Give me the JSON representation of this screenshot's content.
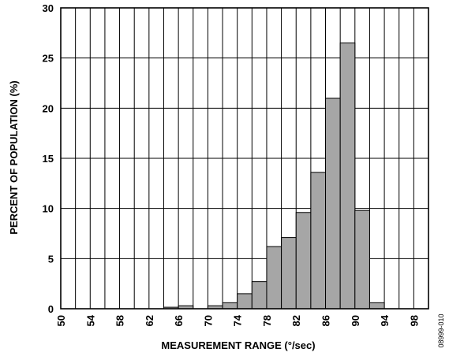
{
  "chart_data": {
    "type": "bar",
    "title": "",
    "xlabel": "MEASUREMENT RANGE (°/sec)",
    "ylabel": "PERCENT OF POPULATION (%)",
    "xlim": [
      50,
      100
    ],
    "ylim": [
      0,
      30
    ],
    "bin_width": 2,
    "x_ticks": [
      "50",
      "54",
      "58",
      "62",
      "66",
      "70",
      "74",
      "78",
      "82",
      "86",
      "90",
      "94",
      "98"
    ],
    "y_ticks": [
      "0",
      "5",
      "10",
      "15",
      "20",
      "25",
      "30"
    ],
    "grid": true,
    "legend": "none",
    "bar_color": "#a6a6a6",
    "bins": [
      {
        "x": 64,
        "value": 0.15
      },
      {
        "x": 66,
        "value": 0.3
      },
      {
        "x": 70,
        "value": 0.3
      },
      {
        "x": 72,
        "value": 0.6
      },
      {
        "x": 74,
        "value": 1.5
      },
      {
        "x": 76,
        "value": 2.7
      },
      {
        "x": 78,
        "value": 6.2
      },
      {
        "x": 80,
        "value": 7.1
      },
      {
        "x": 82,
        "value": 9.6
      },
      {
        "x": 84,
        "value": 13.6
      },
      {
        "x": 86,
        "value": 21.0
      },
      {
        "x": 88,
        "value": 26.5
      },
      {
        "x": 90,
        "value": 9.8
      },
      {
        "x": 92,
        "value": 0.6
      }
    ]
  },
  "figure_code": "08999-010"
}
